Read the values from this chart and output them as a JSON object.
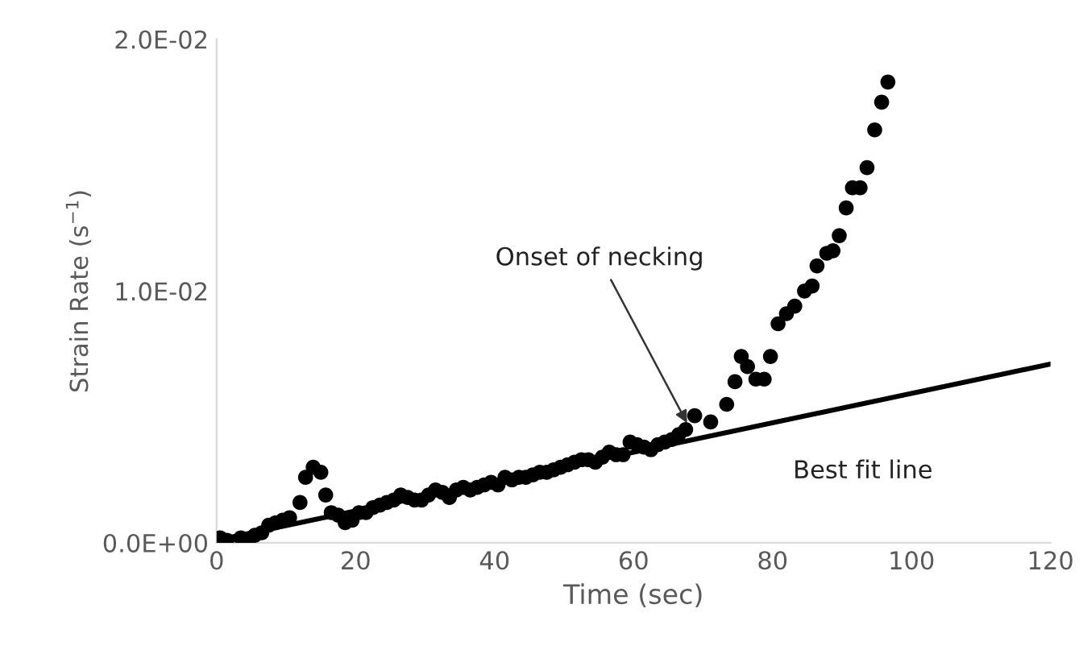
{
  "chart_data": {
    "type": "scatter",
    "xlabel": "Time (sec)",
    "ylabel": "Strain Rate (s$^{−1}$)",
    "xlim": [
      0,
      120
    ],
    "xticks": [
      0,
      20,
      40,
      60,
      80,
      100,
      120
    ],
    "ylim": [
      0,
      0.02
    ],
    "yticks": [
      {
        "value": 0,
        "label": "0.0E+00"
      },
      {
        "value": 0.01,
        "label": "1.0E-02"
      },
      {
        "value": 0.02,
        "label": "2.0E-02"
      }
    ],
    "grid": false,
    "series": [
      {
        "marker": "circle",
        "color": "#000000",
        "x": [
          0.5,
          1.5,
          3.5,
          4.5,
          5.5,
          6.5,
          7.5,
          8.5,
          9.5,
          10.5,
          12,
          12.8,
          13.9,
          15,
          15.7,
          16.5,
          17.5,
          18.5,
          19.5,
          20.5,
          21.5,
          22.5,
          23.5,
          24.5,
          25.5,
          26.5,
          27.5,
          28.5,
          29.5,
          30.5,
          31.5,
          32.5,
          33.5,
          34.5,
          35.5,
          36.5,
          37.5,
          38.5,
          39.5,
          40.5,
          41.5,
          42.5,
          43.5,
          44.5,
          45.5,
          46.5,
          47.5,
          48.5,
          49.5,
          50.5,
          51.5,
          52.5,
          53.5,
          54.5,
          55.5,
          56.5,
          57.5,
          58.5,
          59.5,
          60.5,
          61.5,
          62.5,
          63.5,
          64.5,
          65.5,
          66.5,
          67.5,
          68.8,
          71.1,
          73.4,
          74.6,
          75.5,
          76.4,
          77.6,
          78.8,
          79.7,
          80.8,
          82,
          83.2,
          84.6,
          85.7,
          86.4,
          87.8,
          88.7,
          89.6,
          90.6,
          91.5,
          92.6,
          93.6,
          94.7,
          95.7,
          96.6
        ],
        "values": [
          0.0002,
          0.0001,
          0.0002,
          0.0001,
          0.0003,
          0.0004,
          0.0007,
          0.0008,
          0.0009,
          0.001,
          0.0016,
          0.0026,
          0.003,
          0.0028,
          0.0019,
          0.0012,
          0.0011,
          0.0008,
          0.0009,
          0.0012,
          0.0012,
          0.0014,
          0.0015,
          0.0016,
          0.0017,
          0.0019,
          0.0018,
          0.0017,
          0.0017,
          0.0019,
          0.0021,
          0.002,
          0.0018,
          0.0021,
          0.0022,
          0.0021,
          0.0022,
          0.0023,
          0.0024,
          0.0023,
          0.0026,
          0.0025,
          0.0026,
          0.0026,
          0.0027,
          0.0028,
          0.0028,
          0.0029,
          0.003,
          0.0031,
          0.0032,
          0.0033,
          0.0033,
          0.0032,
          0.0034,
          0.0036,
          0.0035,
          0.0035,
          0.004,
          0.0039,
          0.0038,
          0.0037,
          0.0039,
          0.004,
          0.0041,
          0.0043,
          0.0045,
          0.00505,
          0.0048,
          0.0055,
          0.0064,
          0.0074,
          0.007,
          0.0065,
          0.0065,
          0.0074,
          0.0087,
          0.0091,
          0.0094,
          0.01,
          0.0102,
          0.011,
          0.0115,
          0.0116,
          0.0122,
          0.0133,
          0.0141,
          0.0141,
          0.0149,
          0.0164,
          0.0175,
          0.0183
        ]
      },
      {
        "type": "line",
        "marker": "none",
        "color": "#000000",
        "x": [
          0,
          120
        ],
        "values": [
          0.0001,
          0.0071
        ]
      }
    ],
    "annotations": [
      {
        "text": "Onset of necking",
        "x": 68,
        "y": 0.0046
      },
      {
        "text": "Best fit line",
        "x": 93,
        "y": 0.0055
      }
    ]
  }
}
